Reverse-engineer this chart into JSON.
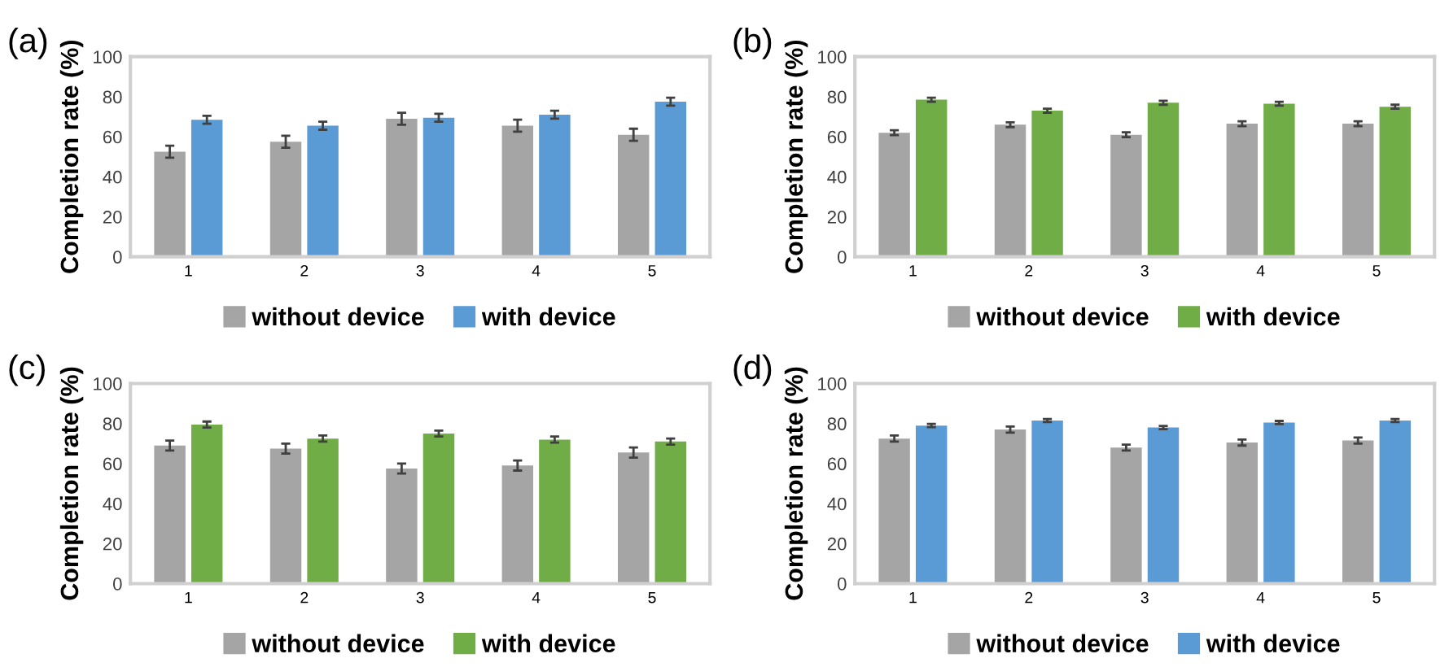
{
  "chart_data": [
    {
      "type": "bar",
      "title": "(a)",
      "ylabel": "Completion rate (%)",
      "categories": [
        "1",
        "2",
        "3",
        "4",
        "5"
      ],
      "ylim": [
        0,
        100
      ],
      "yticks": [
        0,
        20,
        40,
        60,
        80,
        100
      ],
      "grid": false,
      "legend": "bottom",
      "series": [
        {
          "name": "without device",
          "color": "#a5a5a5",
          "values": [
            52.5,
            57.5,
            69,
            65.5,
            61
          ],
          "errors": [
            3,
            3,
            3,
            3,
            3
          ]
        },
        {
          "name": "with device",
          "color": "#5b9bd5",
          "values": [
            68.5,
            65.5,
            69.5,
            71,
            77.5
          ],
          "errors": [
            2,
            2,
            2,
            2,
            2
          ]
        }
      ]
    },
    {
      "type": "bar",
      "title": "(b)",
      "ylabel": "Completion rate (%)",
      "categories": [
        "1",
        "2",
        "3",
        "4",
        "5"
      ],
      "ylim": [
        0,
        100
      ],
      "yticks": [
        0,
        20,
        40,
        60,
        80,
        100
      ],
      "grid": false,
      "legend": "bottom",
      "series": [
        {
          "name": "without device",
          "color": "#a5a5a5",
          "values": [
            62,
            66,
            61,
            66.5,
            66.5
          ],
          "errors": [
            1.2,
            1.2,
            1.2,
            1.2,
            1.2
          ]
        },
        {
          "name": "with device",
          "color": "#70ad47",
          "values": [
            78.5,
            73,
            77,
            76.5,
            75
          ],
          "errors": [
            1,
            1,
            1,
            1,
            1
          ]
        }
      ]
    },
    {
      "type": "bar",
      "title": "(c)",
      "ylabel": "Completion rate (%)",
      "categories": [
        "1",
        "2",
        "3",
        "4",
        "5"
      ],
      "ylim": [
        0,
        100
      ],
      "yticks": [
        0,
        20,
        40,
        60,
        80,
        100
      ],
      "grid": false,
      "legend": "bottom",
      "series": [
        {
          "name": "without device",
          "color": "#a5a5a5",
          "values": [
            69,
            67.5,
            57.5,
            59,
            65.5
          ],
          "errors": [
            2.5,
            2.5,
            2.5,
            2.5,
            2.5
          ]
        },
        {
          "name": "with device",
          "color": "#70ad47",
          "values": [
            79.5,
            72.5,
            75,
            72,
            71
          ],
          "errors": [
            1.5,
            1.5,
            1.5,
            1.5,
            1.5
          ]
        }
      ]
    },
    {
      "type": "bar",
      "title": "(d)",
      "ylabel": "Completion rate (%)",
      "categories": [
        "1",
        "2",
        "3",
        "4",
        "5"
      ],
      "ylim": [
        0,
        100
      ],
      "yticks": [
        0,
        20,
        40,
        60,
        80,
        100
      ],
      "grid": false,
      "legend": "bottom",
      "series": [
        {
          "name": "without device",
          "color": "#a5a5a5",
          "values": [
            72.5,
            77,
            68,
            70.5,
            71.5
          ],
          "errors": [
            1.5,
            1.5,
            1.5,
            1.5,
            1.5
          ]
        },
        {
          "name": "with device",
          "color": "#5b9bd5",
          "values": [
            79,
            81.5,
            78,
            80.5,
            81.5
          ],
          "errors": [
            0.8,
            0.8,
            0.8,
            0.8,
            0.8
          ]
        }
      ]
    }
  ]
}
